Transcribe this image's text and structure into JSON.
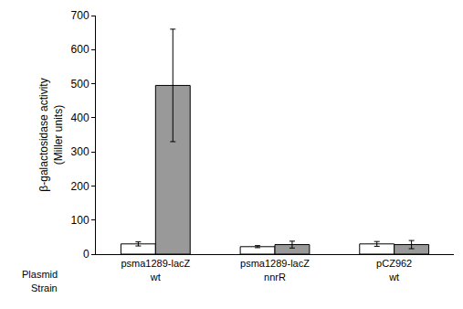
{
  "chart_data": {
    "type": "bar",
    "ylabel": [
      "β-galactosidase activity",
      "(Miller units)"
    ],
    "categories": [
      "psma1289-lacZ",
      "psma1289-lacZ",
      "pCZ962"
    ],
    "strains": [
      "wt",
      "nnrR",
      "wt"
    ],
    "row_labels": [
      "Plasmid",
      "Strain"
    ],
    "series": [
      {
        "color": "#ffffff",
        "values": [
          30,
          22,
          30
        ],
        "errors": [
          6,
          3,
          7
        ]
      },
      {
        "color": "#999999",
        "values": [
          495,
          28,
          28
        ],
        "errors": [
          165,
          10,
          12
        ]
      }
    ],
    "ylim": [
      0,
      700
    ],
    "yticks": [
      0,
      100,
      200,
      300,
      400,
      500,
      600,
      700
    ],
    "grid": false
  }
}
